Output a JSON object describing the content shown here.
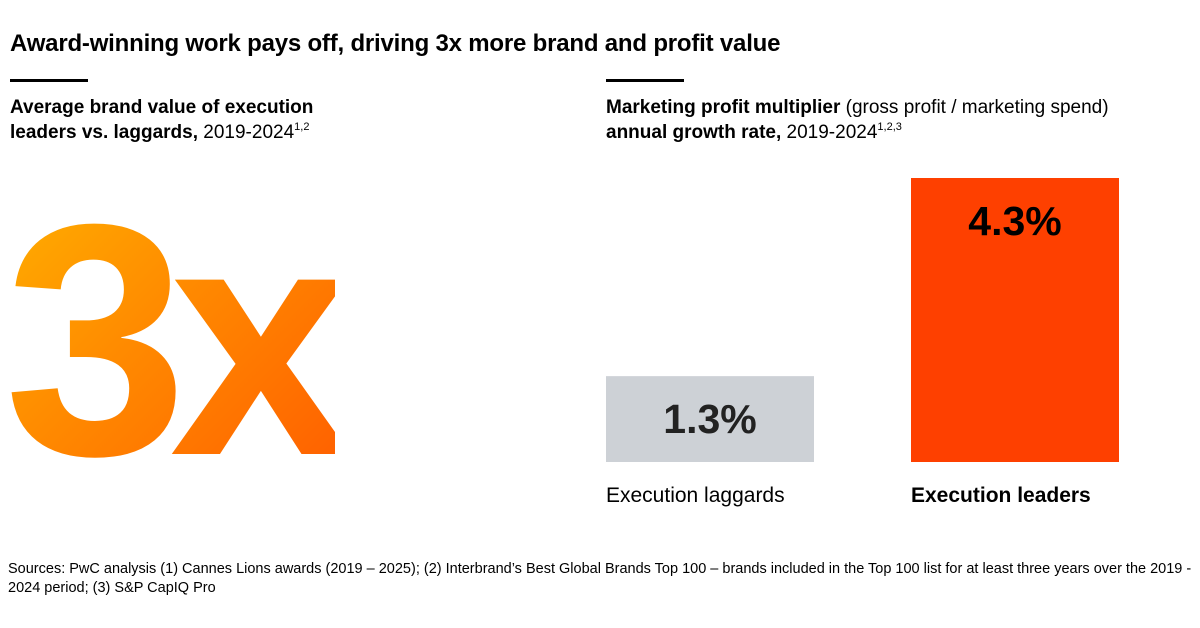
{
  "header": {
    "title": "Award-winning work pays off, driving 3x more brand and profit value"
  },
  "left_panel": {
    "subtitle_bold": "Average brand value of execution leaders vs. laggards,",
    "subtitle_bold_line1": "Average brand value of execution",
    "subtitle_bold_line2": "leaders vs. laggards,",
    "subtitle_regular": "2019-2024",
    "subtitle_sup": "1,2",
    "big_stat": "3x",
    "big_stat_colors": [
      "#ffb400",
      "#ff8a00",
      "#ff5a00"
    ]
  },
  "right_panel": {
    "subtitle_bold_line1": "Marketing profit multiplier",
    "subtitle_regular_line1": "(gross profit / marketing spend)",
    "subtitle_bold_line2": "annual growth rate,",
    "subtitle_regular_line2": "2019-2024",
    "subtitle_sup": "1,2,3"
  },
  "chart_data": {
    "type": "bar",
    "title": "Marketing profit multiplier (gross profit / marketing spend) annual growth rate, 2019-2024",
    "categories": [
      "Execution laggards",
      "Execution leaders"
    ],
    "values": [
      1.3,
      4.3
    ],
    "value_labels": [
      "1.3%",
      "4.3%"
    ],
    "bar_colors": [
      "#cdd1d6",
      "#fe4000"
    ],
    "category_label_weight": [
      "normal",
      "bold"
    ],
    "xlabel": "",
    "ylabel": "",
    "ylim": [
      0,
      4.3
    ],
    "grid": false
  },
  "footer": {
    "sources": "Sources: PwC analysis (1) Cannes Lions awards (2019 – 2025); (2) Interbrand’s Best Global Brands Top 100 – brands included in the Top 100 list for at least three years over the 2019 - 2024 period; (3) S&P CapIQ Pro"
  }
}
